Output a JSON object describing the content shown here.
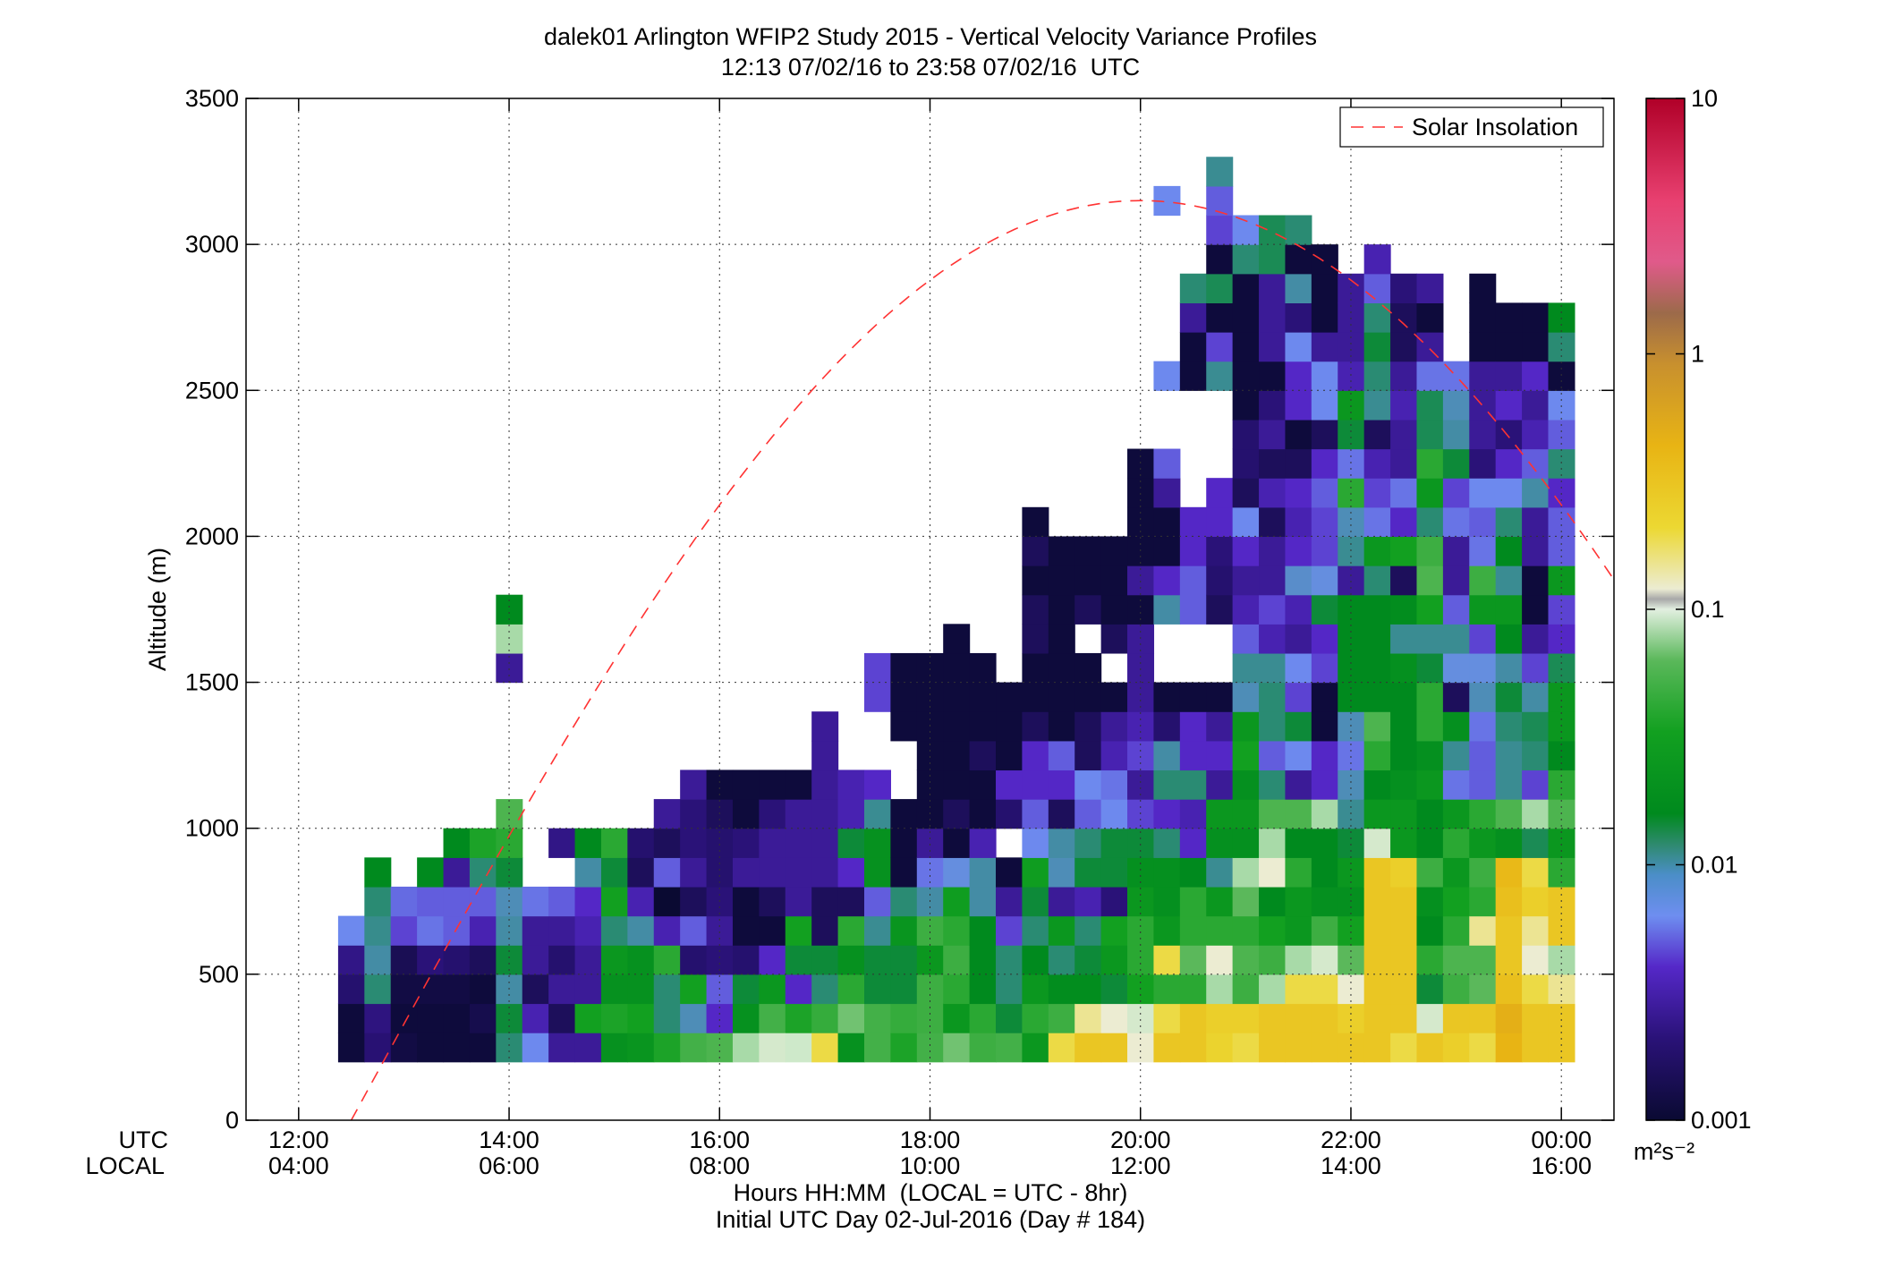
{
  "chart_data": {
    "type": "heatmap",
    "title": "dalek01 Arlington WFIP2 Study 2015 - Vertical Velocity Variance Profiles",
    "subtitle": "12:13 07/02/16 to 23:58 07/02/16  UTC",
    "ylabel": "Altitude (m)",
    "xlabel": "Hours HH:MM  (LOCAL = UTC - 8hr)",
    "xlabel2": "Initial UTC Day 02-Jul-2016 (Day # 184)",
    "x_row_labels": [
      "UTC",
      "LOCAL"
    ],
    "x_ticks_utc": [
      "12:00",
      "14:00",
      "16:00",
      "18:00",
      "20:00",
      "22:00",
      "00:00"
    ],
    "x_ticks_local": [
      "04:00",
      "06:00",
      "08:00",
      "10:00",
      "12:00",
      "14:00",
      "16:00"
    ],
    "x_tick_hours": [
      12,
      14,
      16,
      18,
      20,
      22,
      24
    ],
    "xlim": [
      11.5,
      24.5
    ],
    "ylim": [
      0,
      3500
    ],
    "y_ticks": [
      "0",
      "500",
      "1000",
      "1500",
      "2000",
      "2500",
      "3000",
      "3500"
    ],
    "grid": true,
    "legend_position": "top-right",
    "legend": [
      {
        "name": "Solar Insolation",
        "color": "#ff3333",
        "style": "dashed"
      }
    ],
    "colorbar": {
      "scale": "log",
      "range": [
        0.001,
        10
      ],
      "tick_labels": [
        "0.001",
        "0.01",
        "0.1",
        "1",
        "10"
      ],
      "unit_label": "m²s⁻²"
    },
    "cell_width_hours": 0.25,
    "bin_height_m": 100,
    "levels": [
      250,
      350,
      450,
      550,
      650,
      750,
      850,
      950,
      1050,
      1150,
      1250,
      1350,
      1450,
      1550,
      1650,
      1750,
      1850,
      1950,
      2050,
      2150,
      2250,
      2350,
      2450,
      2550,
      2650,
      2750,
      2850,
      2950,
      3050,
      3150,
      3250
    ],
    "profiles": [
      {
        "time": 12.5,
        "start": 250,
        "values": [
          0.0011,
          0.0011,
          0.0018,
          0.0022,
          0.0055
        ]
      },
      {
        "time": 12.75,
        "start": 250,
        "values": [
          0.0019,
          0.0021,
          0.0085,
          0.0075,
          0.0081,
          0.0085,
          0.01
        ]
      },
      {
        "time": 13.0,
        "start": 250,
        "values": [
          0.0012,
          0.0011,
          0.0012,
          0.0014,
          0.004,
          0.0048
        ]
      },
      {
        "time": 13.25,
        "start": 250,
        "values": [
          0.0011,
          0.0011,
          0.0012,
          0.002,
          0.005,
          0.0045,
          0.01
        ]
      },
      {
        "time": 13.5,
        "start": 250,
        "values": [
          0.0011,
          0.0011,
          0.0012,
          0.0018,
          0.0045,
          0.0045,
          0.0025,
          0.01
        ]
      },
      {
        "time": 13.75,
        "start": 250,
        "values": [
          0.0011,
          0.0013,
          0.0011,
          0.0015,
          0.003,
          0.0045,
          0.0085,
          0.022
        ]
      },
      {
        "time": 14.0,
        "start": 250,
        "values": [
          0.0085,
          0.0095,
          0.0075,
          0.0095,
          0.0075,
          0.007,
          0.0095,
          0.025,
          0.035,
          null,
          null,
          null,
          null,
          0.0025,
          0.06,
          0.01
        ]
      },
      {
        "time": 14.25,
        "start": 250,
        "values": [
          0.0055,
          0.003,
          0.0015,
          0.0025,
          0.0025,
          0.005
        ]
      },
      {
        "time": 14.5,
        "start": 250,
        "values": [
          0.0025,
          0.0015,
          0.0025,
          0.0018,
          0.0025,
          0.0045,
          null,
          0.0022
        ]
      },
      {
        "time": 14.75,
        "start": 250,
        "values": [
          0.0025,
          0.02,
          0.0025,
          0.0025,
          0.003,
          0.0035,
          0.0075,
          0.01
        ]
      },
      {
        "time": 15.0,
        "start": 250,
        "values": [
          0.0125,
          0.022,
          0.0125,
          0.015,
          0.0085,
          0.02,
          0.0095,
          0.025
        ]
      },
      {
        "time": 15.25,
        "start": 250,
        "values": [
          0.014,
          0.02,
          0.0125,
          0.0125,
          0.0075,
          0.003,
          0.0015,
          0.0018
        ]
      },
      {
        "time": 15.5,
        "start": 250,
        "values": [
          0.022,
          0.0085,
          0.0085,
          0.025,
          0.003,
          0.001,
          0.0045,
          0.0015,
          0.0025
        ]
      },
      {
        "time": 15.75,
        "start": 250,
        "values": [
          0.032,
          0.007,
          0.02,
          0.0018,
          0.0045,
          0.0015,
          0.0025,
          0.002,
          0.002,
          0.0025
        ]
      },
      {
        "time": 16.0,
        "start": 250,
        "values": [
          0.035,
          0.0035,
          0.0045,
          0.002,
          0.0025,
          0.002,
          0.0018,
          0.0018,
          0.0015,
          0.0011
        ]
      },
      {
        "time": 16.25,
        "start": 250,
        "values": [
          0.06,
          0.0125,
          0.0095,
          0.0018,
          0.0011,
          0.0011,
          0.0025,
          0.002,
          0.0011,
          0.0011
        ]
      },
      {
        "time": 16.5,
        "start": 250,
        "values": [
          0.08,
          0.032,
          0.015,
          0.0035,
          0.0011,
          0.0015,
          0.0025,
          0.0025,
          0.002,
          0.0011
        ]
      },
      {
        "time": 16.75,
        "start": 250,
        "values": [
          0.075,
          0.022,
          0.0035,
          0.0095,
          0.02,
          0.0025,
          0.0025,
          0.0025,
          0.0025,
          0.0011
        ]
      },
      {
        "time": 17.0,
        "start": 250,
        "values": [
          0.15,
          0.028,
          0.0085,
          0.0095,
          0.0015,
          0.0015,
          0.0025,
          0.0025,
          0.0025,
          0.0025,
          0.0025,
          0.0025
        ]
      },
      {
        "time": 17.25,
        "start": 250,
        "values": [
          0.0125,
          0.045,
          0.025,
          0.0125,
          0.025,
          0.0015,
          0.0035,
          0.0095,
          0.003,
          0.003
        ]
      },
      {
        "time": 17.5,
        "start": 250,
        "values": [
          0.032,
          0.032,
          0.0095,
          0.0095,
          0.008,
          0.0045,
          0.0125,
          0.0125,
          0.008,
          0.0035,
          null,
          null,
          0.004,
          0.004
        ]
      },
      {
        "time": 17.75,
        "start": 250,
        "values": [
          0.022,
          0.028,
          0.0095,
          0.0095,
          0.014,
          0.0085,
          0.0011,
          0.0011,
          0.0011,
          null,
          null,
          0.0011,
          0.0011,
          0.0011
        ]
      },
      {
        "time": 18.0,
        "start": 250,
        "values": [
          0.032,
          0.03,
          0.03,
          0.015,
          0.03,
          0.0075,
          0.005,
          0.0025,
          0.0011,
          0.0011,
          0.0011,
          0.0011,
          0.0011,
          0.0011
        ]
      },
      {
        "time": 18.25,
        "start": 250,
        "values": [
          0.045,
          0.015,
          0.025,
          0.03,
          0.025,
          0.018,
          0.006,
          0.0011,
          0.0015,
          0.0011,
          0.0011,
          0.0011,
          0.0011,
          0.0011,
          0.0011
        ]
      },
      {
        "time": 18.5,
        "start": 250,
        "values": [
          0.03,
          0.025,
          0.01,
          0.01,
          0.01,
          0.0075,
          0.0075,
          0.003,
          0.0011,
          0.0011,
          0.0015,
          0.0011,
          0.0011,
          0.0011
        ]
      },
      {
        "time": 18.75,
        "start": 250,
        "values": [
          0.032,
          0.0095,
          0.0085,
          0.0085,
          0.004,
          0.0025,
          0.0011,
          null,
          0.0018,
          0.0035,
          0.0011,
          0.0011,
          0.0011
        ]
      },
      {
        "time": 19.0,
        "start": 250,
        "values": [
          0.015,
          0.025,
          0.015,
          0.01,
          0.0085,
          0.0095,
          0.018,
          0.0055,
          0.0045,
          0.0035,
          0.0035,
          0.0015,
          0.0011,
          0.0011,
          0.0015,
          0.0015,
          0.0011,
          0.0015,
          0.0011
        ]
      },
      {
        "time": 19.25,
        "start": 250,
        "values": [
          0.15,
          0.03,
          0.011,
          0.0085,
          0.015,
          0.0025,
          0.007,
          0.0075,
          0.0015,
          0.0035,
          0.0045,
          0.0011,
          0.0011,
          0.0011,
          0.0011,
          0.0011,
          0.0011,
          0.0011
        ]
      },
      {
        "time": 19.5,
        "start": 250,
        "values": [
          0.25,
          0.12,
          0.011,
          0.0095,
          0.0085,
          0.003,
          0.0095,
          0.0085,
          0.0045,
          0.0055,
          0.0015,
          0.0015,
          0.0011,
          0.0011,
          null,
          0.0015,
          0.0011,
          0.0011
        ]
      },
      {
        "time": 19.75,
        "start": 250,
        "values": [
          0.25,
          0.1,
          0.0095,
          0.015,
          0.02,
          0.002,
          0.0095,
          0.0095,
          0.0055,
          0.005,
          0.003,
          0.0025,
          0.0011,
          null,
          0.0015,
          0.0011,
          0.0011,
          0.0011
        ]
      },
      {
        "time": 20.0,
        "start": 250,
        "values": [
          0.1,
          0.08,
          0.02,
          0.025,
          0.025,
          0.015,
          0.012,
          0.0095,
          0.004,
          0.0025,
          0.004,
          0.003,
          0.0025,
          0.0025,
          0.0025,
          0.0011,
          0.0025,
          0.0011,
          0.0011,
          0.0011,
          0.0011
        ]
      },
      {
        "time": 20.25,
        "start": 250,
        "values": [
          0.25,
          0.15,
          0.025,
          0.15,
          0.015,
          0.012,
          0.012,
          0.0085,
          0.0035,
          0.0085,
          0.0075,
          0.0018,
          0.0011,
          null,
          null,
          0.0075,
          0.0035,
          0.0011,
          0.0011,
          0.0025,
          0.0045,
          null,
          null,
          0.0055,
          null,
          null,
          null,
          null,
          null,
          0.0055
        ]
      },
      {
        "time": 20.5,
        "start": 250,
        "values": [
          0.25,
          0.25,
          0.025,
          0.04,
          0.025,
          0.025,
          0.01,
          0.0035,
          0.003,
          0.0085,
          0.0035,
          0.0035,
          0.0011,
          null,
          null,
          0.0045,
          0.0045,
          0.0035,
          0.0035,
          null,
          null,
          null,
          null,
          0.0011,
          0.0011,
          0.0025,
          0.0085
        ]
      },
      {
        "time": 20.75,
        "start": 250,
        "values": [
          0.18,
          0.2,
          0.06,
          0.1,
          0.025,
          0.015,
          0.008,
          0.012,
          0.015,
          0.0025,
          0.0035,
          0.0025,
          0.0011,
          null,
          null,
          0.0015,
          0.0018,
          0.002,
          0.0035,
          0.0035,
          null,
          null,
          null,
          0.008,
          0.004,
          0.0011,
          0.009,
          0.0011,
          0.004,
          0.0045,
          0.008
        ]
      },
      {
        "time": 21.0,
        "start": 250,
        "values": [
          0.15,
          0.2,
          0.03,
          0.035,
          0.025,
          0.04,
          0.06,
          0.012,
          0.015,
          0.012,
          0.02,
          0.015,
          0.007,
          0.008,
          0.0045,
          0.003,
          0.0025,
          0.0035,
          0.0055,
          0.0015,
          0.0018,
          0.0018,
          0.0011,
          0.0011,
          0.0011,
          0.0011,
          0.0011,
          0.0085,
          0.0055
        ]
      },
      {
        "time": 21.25,
        "start": 250,
        "values": [
          0.25,
          0.25,
          0.06,
          0.03,
          0.02,
          0.01,
          0.1,
          0.06,
          0.035,
          0.0085,
          0.0045,
          0.0085,
          0.0085,
          0.008,
          0.003,
          0.004,
          0.0025,
          0.0025,
          0.0015,
          0.003,
          0.0015,
          0.0025,
          0.002,
          0.0011,
          0.0025,
          0.0025,
          0.0025,
          0.009,
          0.009
        ]
      },
      {
        "time": 21.5,
        "start": 250,
        "values": [
          0.25,
          0.25,
          0.15,
          0.06,
          0.015,
          0.015,
          0.025,
          0.01,
          0.035,
          0.0025,
          0.0055,
          0.0095,
          0.004,
          0.0055,
          0.0025,
          0.003,
          0.0065,
          0.0035,
          0.003,
          0.0035,
          0.0015,
          0.0011,
          0.0035,
          0.0035,
          0.0055,
          0.002,
          0.0075,
          0.0011,
          0.0085
        ]
      },
      {
        "time": 21.75,
        "start": 250,
        "values": [
          0.25,
          0.25,
          0.15,
          0.08,
          0.03,
          0.012,
          0.01,
          0.01,
          0.06,
          0.0035,
          0.0035,
          0.0011,
          0.0011,
          0.004,
          0.0035,
          0.0095,
          0.006,
          0.004,
          0.004,
          0.0045,
          0.0035,
          0.0015,
          0.0055,
          0.0055,
          0.0025,
          0.0011,
          0.0011,
          0.0011
        ]
      },
      {
        "time": 22.0,
        "start": 250,
        "values": [
          0.25,
          0.2,
          0.1,
          0.04,
          0.02,
          0.012,
          0.015,
          0.0095,
          0.008,
          0.007,
          0.005,
          0.007,
          0.01,
          0.01,
          0.01,
          0.01,
          0.0025,
          0.008,
          0.007,
          0.025,
          0.005,
          0.0095,
          0.015,
          0.003,
          0.0025,
          0.0025,
          0.0025
        ]
      },
      {
        "time": 22.25,
        "start": 250,
        "values": [
          0.25,
          0.25,
          0.25,
          0.25,
          0.25,
          0.25,
          0.25,
          0.08,
          0.015,
          0.01,
          0.025,
          0.035,
          0.01,
          0.01,
          0.01,
          0.01,
          0.0085,
          0.015,
          0.005,
          0.004,
          0.003,
          0.0015,
          0.008,
          0.0085,
          0.0095,
          0.0085,
          0.0045,
          0.003
        ]
      },
      {
        "time": 22.5,
        "start": 250,
        "values": [
          0.15,
          0.25,
          0.25,
          0.25,
          0.25,
          0.25,
          0.2,
          0.015,
          0.015,
          0.012,
          0.01,
          0.01,
          0.01,
          0.012,
          0.008,
          0.011,
          0.0015,
          0.02,
          0.0035,
          0.005,
          0.0025,
          0.0025,
          0.003,
          0.0025,
          0.0015,
          0.0015,
          0.002
        ]
      },
      {
        "time": 22.75,
        "start": 250,
        "values": [
          0.25,
          0.08,
          0.0095,
          0.025,
          0.01,
          0.012,
          0.03,
          0.01,
          0.01,
          0.015,
          0.012,
          0.025,
          0.025,
          0.0095,
          0.008,
          0.02,
          0.035,
          0.03,
          0.0085,
          0.015,
          0.025,
          0.009,
          0.009,
          0.005,
          0.0025,
          0.0011,
          0.0025
        ]
      },
      {
        "time": 23.0,
        "start": 250,
        "values": [
          0.2,
          0.25,
          0.03,
          0.035,
          0.025,
          0.02,
          0.015,
          0.025,
          0.015,
          0.005,
          0.008,
          0.012,
          0.0015,
          0.006,
          0.008,
          0.0045,
          0.0025,
          0.0025,
          0.005,
          0.004,
          0.0095,
          0.0075,
          0.007,
          0.005
        ]
      },
      {
        "time": 23.25,
        "start": 250,
        "values": [
          0.15,
          0.25,
          0.04,
          0.035,
          0.12,
          0.025,
          0.03,
          0.015,
          0.025,
          0.0045,
          0.0045,
          0.005,
          0.007,
          0.006,
          0.004,
          0.015,
          0.03,
          0.005,
          0.0045,
          0.0055,
          0.002,
          0.0025,
          0.0025,
          0.0025,
          0.0011,
          0.0011,
          0.0011
        ]
      },
      {
        "time": 23.5,
        "start": 250,
        "values": [
          0.4,
          0.45,
          0.3,
          0.25,
          0.25,
          0.3,
          0.35,
          0.012,
          0.035,
          0.008,
          0.008,
          0.0085,
          0.0095,
          0.0075,
          0.01,
          0.015,
          0.008,
          0.01,
          0.0085,
          0.0055,
          0.0035,
          0.002,
          0.0035,
          0.0025,
          0.0011,
          0.0011
        ]
      },
      {
        "time": 23.75,
        "start": 250,
        "values": [
          0.25,
          0.25,
          0.15,
          0.1,
          0.12,
          0.2,
          0.15,
          0.009,
          0.06,
          0.004,
          0.0085,
          0.009,
          0.0075,
          0.004,
          0.0025,
          0.0011,
          0.0011,
          0.0025,
          0.0025,
          0.0075,
          0.0045,
          0.003,
          0.0025,
          0.0035,
          0.0011,
          0.0011
        ]
      },
      {
        "time": 24.0,
        "start": 250,
        "values": [
          0.25,
          0.25,
          0.12,
          0.06,
          0.25,
          0.25,
          0.025,
          0.015,
          0.035,
          0.025,
          0.01,
          0.015,
          0.015,
          0.009,
          0.0035,
          0.004,
          0.015,
          0.0045,
          0.0045,
          0.0035,
          0.0085,
          0.0045,
          0.0055,
          0.0011,
          0.0085,
          0.01
        ]
      }
    ]
  }
}
